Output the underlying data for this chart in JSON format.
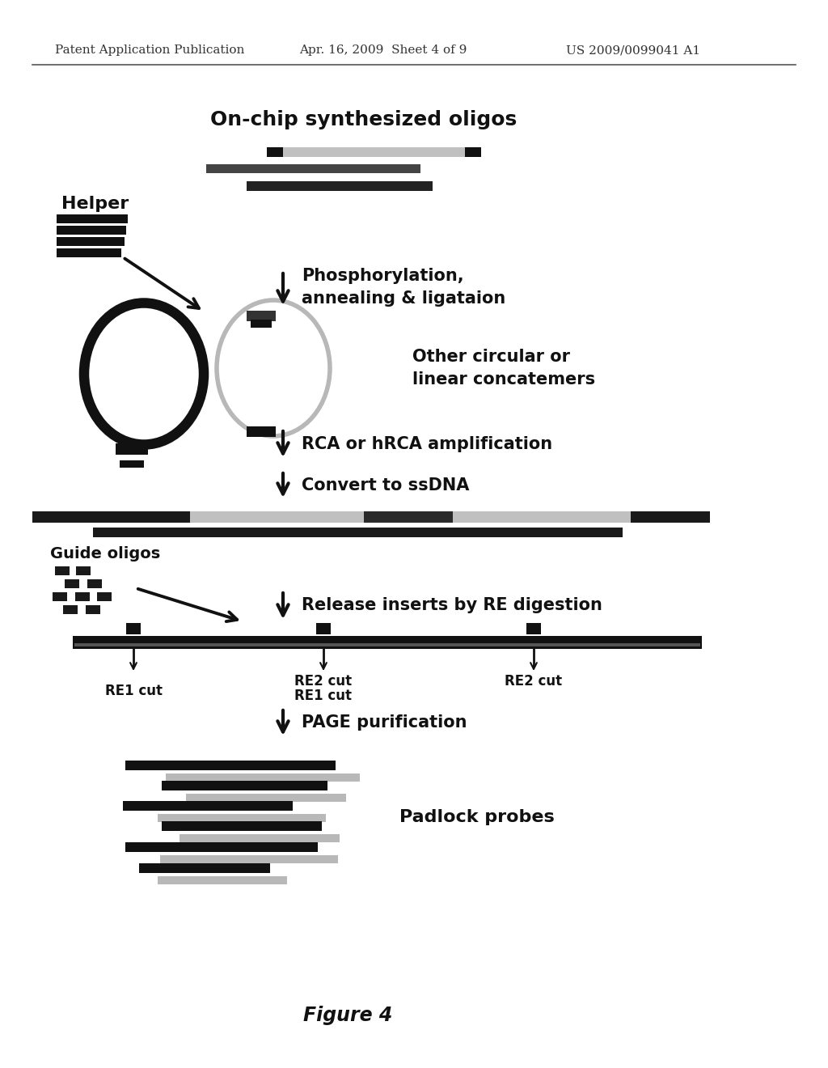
{
  "bg_color": "#ffffff",
  "header_left": "Patent Application Publication",
  "header_center": "Apr. 16, 2009  Sheet 4 of 9",
  "header_right": "US 2009/0099041 A1",
  "title_oligos": "On-chip synthesized oligos",
  "label_helper": "Helper",
  "label_phospho": "Phosphorylation,\nannealing & ligataion",
  "label_circular": "Other circular or\nlinear concatemers",
  "label_rca": "RCA or hRCA amplification",
  "label_convert": "Convert to ssDNA",
  "label_guide": "Guide oligos",
  "label_release": "Release inserts by RE digestion",
  "label_re1_left": "RE1 cut",
  "label_re2_mid": "RE2 cut",
  "label_re1_mid": "RE1 cut",
  "label_re2_right": "RE2 cut",
  "label_page": "PAGE purification",
  "label_padlock": "Padlock probes",
  "figure_label": "Figure 4"
}
